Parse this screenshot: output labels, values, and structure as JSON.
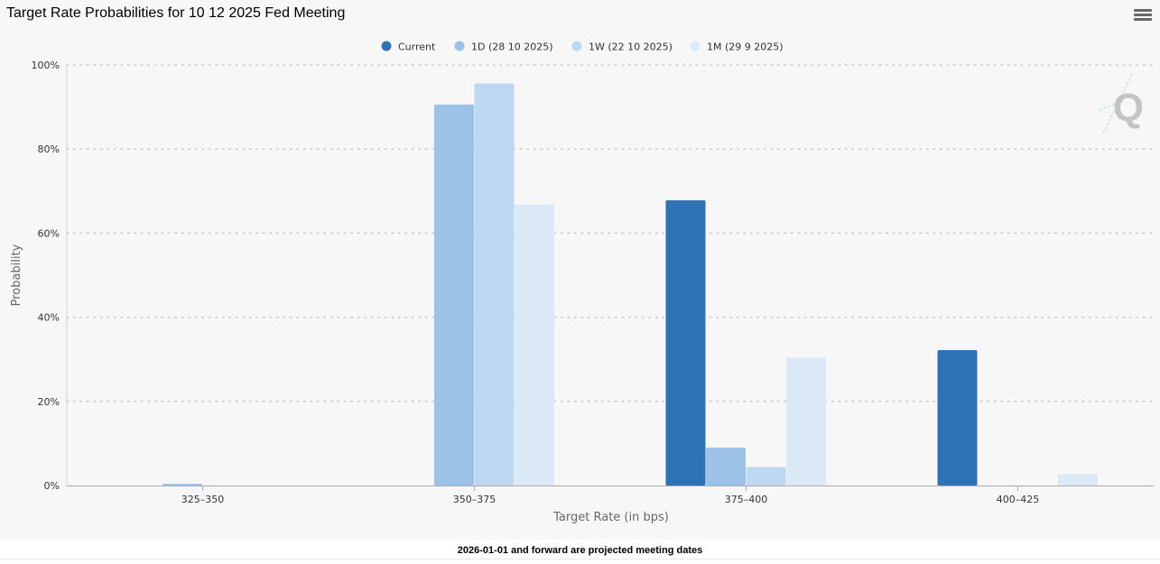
{
  "chart_data": {
    "type": "bar",
    "title": "Target Rate Probabilities for 10 12 2025 Fed Meeting",
    "xlabel": "Target Rate (in bps)",
    "ylabel": "Probability",
    "ylim": [
      0,
      100
    ],
    "y_ticks": [
      "0%",
      "20%",
      "40%",
      "60%",
      "80%",
      "100%"
    ],
    "categories": [
      "325-350",
      "350-375",
      "375-400",
      "400-425"
    ],
    "series": [
      {
        "name": "Current",
        "color": "#2e73b6",
        "values": [
          0,
          0,
          67.8,
          32.2
        ]
      },
      {
        "name": "1D (28 10 2025)",
        "color": "#9dc2e7",
        "values": [
          0.4,
          90.6,
          9.0,
          0
        ]
      },
      {
        "name": "1W (22 10 2025)",
        "color": "#bdd8f0",
        "values": [
          0,
          95.6,
          4.4,
          0
        ]
      },
      {
        "name": "1M (29 9 2025)",
        "color": "#dce9f6",
        "values": [
          0,
          66.8,
          30.5,
          2.7
        ]
      }
    ],
    "grid": true,
    "legend_position": "top-center"
  },
  "footer": {
    "note": "2026-01-01 and forward are projected meeting dates"
  },
  "toolbar": {
    "menu_icon": "hamburger-menu-icon"
  },
  "watermark": {
    "letter": "Q"
  }
}
